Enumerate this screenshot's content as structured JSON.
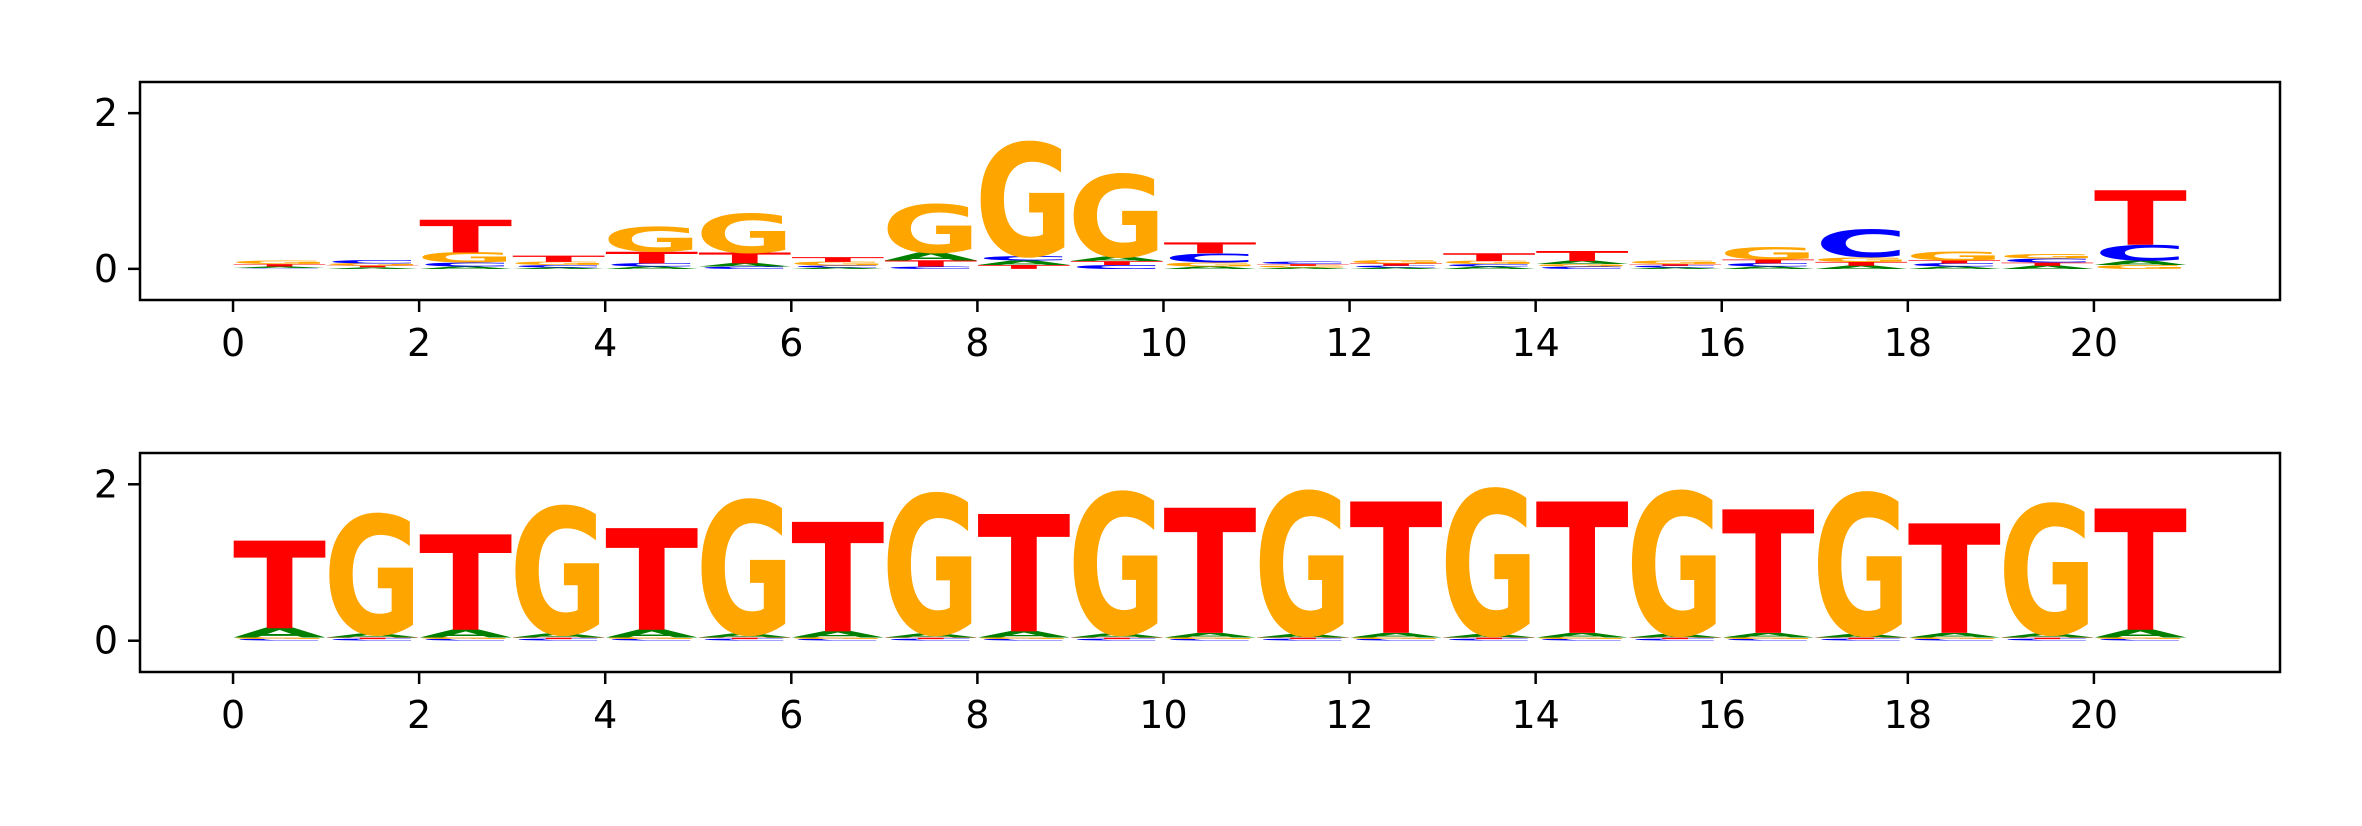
{
  "colors": {
    "A": "#008000",
    "C": "#0000ff",
    "G": "#ffa500",
    "T": "#ff0000"
  },
  "chart_data": [
    {
      "type": "sequence-logo",
      "title": "",
      "xlabel": "",
      "ylabel": "",
      "xlim": [
        -1,
        22
      ],
      "ylim": [
        -0.4,
        2.4
      ],
      "x_ticks": [
        0,
        2,
        4,
        6,
        8,
        10,
        12,
        14,
        16,
        18,
        20
      ],
      "y_ticks": [
        0,
        2
      ],
      "positions": [
        {
          "A": 0.02,
          "C": 0.01,
          "G": 0.04,
          "T": 0.03
        },
        {
          "A": 0.02,
          "C": 0.04,
          "G": 0.03,
          "T": 0.02
        },
        {
          "A": 0.03,
          "C": 0.05,
          "G": 0.13,
          "T": 0.42
        },
        {
          "A": 0.02,
          "C": 0.03,
          "G": 0.04,
          "T": 0.08
        },
        {
          "A": 0.03,
          "C": 0.04,
          "G": 0.32,
          "T": 0.15
        },
        {
          "A": 0.04,
          "C": 0.03,
          "G": 0.5,
          "T": 0.14
        },
        {
          "A": 0.02,
          "C": 0.02,
          "G": 0.05,
          "T": 0.06
        },
        {
          "A": 0.1,
          "C": 0.03,
          "G": 0.62,
          "T": 0.08
        },
        {
          "A": 0.06,
          "C": 0.06,
          "G": 1.45,
          "T": 0.05
        },
        {
          "A": 0.06,
          "C": 0.05,
          "G": 1.05,
          "T": 0.05
        },
        {
          "A": 0.03,
          "C": 0.12,
          "G": 0.05,
          "T": 0.14
        },
        {
          "A": 0.02,
          "C": 0.03,
          "G": 0.02,
          "T": 0.02
        },
        {
          "A": 0.02,
          "C": 0.02,
          "G": 0.04,
          "T": 0.03
        },
        {
          "A": 0.03,
          "C": 0.03,
          "G": 0.04,
          "T": 0.1
        },
        {
          "A": 0.04,
          "C": 0.03,
          "G": 0.03,
          "T": 0.13
        },
        {
          "A": 0.02,
          "C": 0.02,
          "G": 0.04,
          "T": 0.02
        },
        {
          "A": 0.03,
          "C": 0.04,
          "G": 0.16,
          "T": 0.05
        },
        {
          "A": 0.04,
          "C": 0.35,
          "G": 0.06,
          "T": 0.05
        },
        {
          "A": 0.03,
          "C": 0.04,
          "G": 0.12,
          "T": 0.04
        },
        {
          "A": 0.04,
          "C": 0.05,
          "G": 0.06,
          "T": 0.04
        },
        {
          "A": 0.06,
          "C": 0.2,
          "G": 0.05,
          "T": 0.7
        }
      ]
    },
    {
      "type": "sequence-logo",
      "title": "",
      "xlabel": "",
      "ylabel": "",
      "xlim": [
        -1,
        22
      ],
      "ylim": [
        -0.4,
        2.4
      ],
      "x_ticks": [
        0,
        2,
        4,
        6,
        8,
        10,
        12,
        14,
        16,
        18,
        20
      ],
      "y_ticks": [
        0,
        2
      ],
      "positions": [
        {
          "A": 0.12,
          "C": 0.02,
          "G": 0.02,
          "T": 1.12
        },
        {
          "A": 0.05,
          "C": 0.02,
          "G": 1.52,
          "T": 0.02
        },
        {
          "A": 0.1,
          "C": 0.02,
          "G": 0.02,
          "T": 1.22
        },
        {
          "A": 0.05,
          "C": 0.02,
          "G": 1.62,
          "T": 0.02
        },
        {
          "A": 0.1,
          "C": 0.02,
          "G": 0.02,
          "T": 1.3
        },
        {
          "A": 0.05,
          "C": 0.02,
          "G": 1.7,
          "T": 0.02
        },
        {
          "A": 0.08,
          "C": 0.02,
          "G": 0.02,
          "T": 1.4
        },
        {
          "A": 0.05,
          "C": 0.02,
          "G": 1.78,
          "T": 0.02
        },
        {
          "A": 0.08,
          "C": 0.02,
          "G": 0.02,
          "T": 1.5
        },
        {
          "A": 0.05,
          "C": 0.02,
          "G": 1.8,
          "T": 0.02
        },
        {
          "A": 0.06,
          "C": 0.02,
          "G": 0.02,
          "T": 1.6
        },
        {
          "A": 0.04,
          "C": 0.02,
          "G": 1.82,
          "T": 0.02
        },
        {
          "A": 0.06,
          "C": 0.02,
          "G": 0.02,
          "T": 1.68
        },
        {
          "A": 0.04,
          "C": 0.02,
          "G": 1.85,
          "T": 0.02
        },
        {
          "A": 0.06,
          "C": 0.02,
          "G": 0.02,
          "T": 1.68
        },
        {
          "A": 0.04,
          "C": 0.02,
          "G": 1.82,
          "T": 0.02
        },
        {
          "A": 0.06,
          "C": 0.02,
          "G": 0.02,
          "T": 1.58
        },
        {
          "A": 0.04,
          "C": 0.02,
          "G": 1.8,
          "T": 0.02
        },
        {
          "A": 0.06,
          "C": 0.02,
          "G": 0.02,
          "T": 1.4
        },
        {
          "A": 0.05,
          "C": 0.02,
          "G": 1.65,
          "T": 0.02
        },
        {
          "A": 0.1,
          "C": 0.02,
          "G": 0.02,
          "T": 1.55
        }
      ]
    }
  ]
}
